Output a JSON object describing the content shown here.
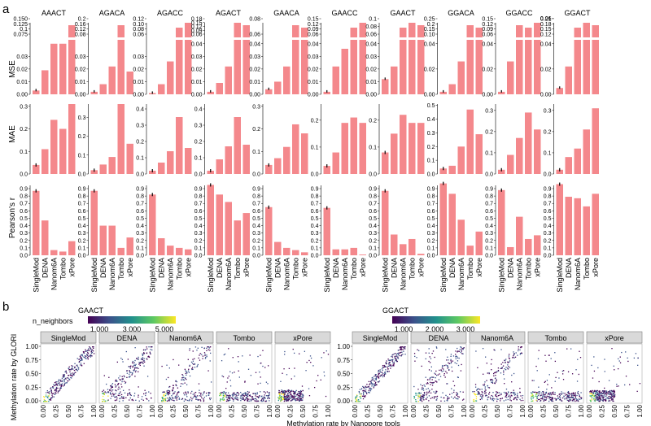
{
  "panels": {
    "a": "a",
    "b": "b"
  },
  "colors": {
    "bar": "#f4888c",
    "strip": "#d9d9d9",
    "strip_border": "#7f7f7f",
    "error": "#000000"
  },
  "chart_data": [
    {
      "type": "bar",
      "panel": "a",
      "categories": [
        "SingleMod",
        "DENA",
        "Nanom6A",
        "Tombo",
        "xPore"
      ],
      "row_labels": {
        "MSE": "MSE",
        "MAE": "MAE",
        "r": "Pearson's r"
      },
      "motifs": [
        {
          "name": "AAACT",
          "mse": [
            0.003,
            0.019,
            0.04,
            0.04,
            0.045
          ],
          "mse_ticks": [
            "0.00",
            "0.01",
            "0.02",
            "0.03"
          ],
          "mse_top": [
            "0.075",
            "0.1",
            "0.125",
            "0.150"
          ],
          "mae": [
            0.04,
            0.11,
            0.24,
            0.2,
            0.31
          ],
          "mae_ticks": [
            "0.0",
            "0.1",
            "0.2",
            "0.3"
          ],
          "mae_max": 0.31,
          "r": [
            0.87,
            0.47,
            0.07,
            0.05,
            0.19
          ]
        },
        {
          "name": "AGACA",
          "mse": [
            0.002,
            0.008,
            0.022,
            0.045,
            0.018
          ],
          "mse_ticks": [
            "0.00",
            "0.01",
            "0.02",
            "0.03"
          ],
          "mse_top": [
            "0.08",
            "0.12",
            "0.16",
            "0.2"
          ],
          "mae": [
            0.02,
            0.05,
            0.09,
            0.37,
            0.16
          ],
          "mae_ticks": [
            "0.0",
            "0.1",
            "0.2",
            "0.3"
          ],
          "mae_max": 0.37,
          "r": [
            0.87,
            0.4,
            0.4,
            0.1,
            0.24
          ]
        },
        {
          "name": "AGACC",
          "mse": [
            0.001,
            0.008,
            0.026,
            0.045,
            0.045
          ],
          "mse_ticks": [
            "0.00",
            "0.01",
            "0.02",
            "0.03"
          ],
          "mse_top": [
            "0.06",
            "0.08",
            "0.10",
            "0.12"
          ],
          "mae": [
            0.02,
            0.07,
            0.14,
            0.35,
            0.16
          ],
          "mae_ticks": [
            "0.0",
            "0.1",
            "0.2",
            "0.3",
            "0.4"
          ],
          "mae_max": 0.43,
          "r": [
            0.82,
            0.23,
            0.13,
            0.1,
            0.08
          ]
        },
        {
          "name": "AGACT",
          "mse": [
            0.002,
            0.009,
            0.022,
            0.045,
            0.045
          ],
          "mse_ticks": [
            "0.00",
            "0.01",
            "0.02",
            "0.03",
            "0.04"
          ],
          "mse_top": [
            "0.06",
            "0.09",
            "0.12",
            "0.15",
            "0.18"
          ],
          "mae": [
            0.02,
            0.09,
            0.17,
            0.35,
            0.18
          ],
          "mae_ticks": [
            "0.0",
            "0.1",
            "0.2",
            "0.3",
            "0.4"
          ],
          "mae_max": 0.43,
          "r": [
            0.95,
            0.82,
            0.72,
            0.47,
            0.57
          ]
        },
        {
          "name": "GAACA",
          "mse": [
            0.004,
            0.01,
            0.022,
            0.045,
            0.045
          ],
          "mse_ticks": [
            "0.00",
            "0.01",
            "0.02",
            "0.03",
            "0.04"
          ],
          "mse_top": [
            "0.06",
            "0.08"
          ],
          "mae": [
            0.04,
            0.07,
            0.12,
            0.22,
            0.18
          ],
          "mae_ticks": [
            "0.0",
            "0.1",
            "0.2",
            "0.3"
          ],
          "mae_max": 0.31,
          "r": [
            0.65,
            0.18,
            0.1,
            0.07,
            0.04
          ]
        },
        {
          "name": "GAACC",
          "mse": [
            0.002,
            0.022,
            0.036,
            0.045,
            0.045
          ],
          "mse_ticks": [
            "0.00",
            "0.01",
            "0.02",
            "0.03",
            "0.04"
          ],
          "mse_top": [
            "0.06",
            "0.09",
            "0.12",
            "0.15"
          ],
          "mae": [
            0.03,
            0.08,
            0.19,
            0.21,
            0.19
          ],
          "mae_ticks": [
            "0.0",
            "0.1",
            "0.2"
          ],
          "mae_max": 0.26,
          "r": [
            0.64,
            0.08,
            0.08,
            0.1,
            0.01
          ]
        },
        {
          "name": "GAACT",
          "mse": [
            0.012,
            0.022,
            0.045,
            0.045,
            0.045
          ],
          "mse_ticks": [
            "0.00",
            "0.01",
            "0.02",
            "0.03",
            "0.04"
          ],
          "mse_top": [
            "0.06",
            "0.08",
            "0.1"
          ],
          "mae": [
            0.08,
            0.15,
            0.22,
            0.19,
            0.19
          ],
          "mae_ticks": [
            "0.0",
            "0.1",
            "0.2"
          ],
          "mae_max": 0.26,
          "r": [
            0.87,
            0.28,
            0.15,
            0.22,
            0.02
          ]
        },
        {
          "name": "GGACA",
          "mse": [
            0.002,
            0.008,
            0.026,
            0.045,
            0.045
          ],
          "mse_ticks": [
            "0.00",
            "0.02",
            "0.04"
          ],
          "mse_top": [
            "0.10",
            "0.15",
            "0.2",
            "0.25"
          ],
          "mae": [
            0.04,
            0.06,
            0.2,
            0.47,
            0.29
          ],
          "mae_ticks": [
            "0.0",
            "0.1",
            "0.2",
            "0.3",
            "0.4",
            "0.5"
          ],
          "mae_max": 0.51,
          "r": [
            0.97,
            0.83,
            0.48,
            0.13,
            0.32
          ]
        },
        {
          "name": "GGACC",
          "mse": [
            0.002,
            0.026,
            0.045,
            0.045,
            0.045
          ],
          "mse_ticks": [
            "0.00",
            "0.02",
            "0.04"
          ],
          "mse_top": [
            "0.06",
            "0.09",
            "0.12",
            "0.15"
          ],
          "mae": [
            0.02,
            0.09,
            0.17,
            0.29,
            0.21
          ],
          "mae_ticks": [
            "0.0",
            "0.1",
            "0.2",
            "0.3"
          ],
          "mae_max": 0.33,
          "r": [
            0.88,
            0.11,
            0.52,
            0.22,
            0.27
          ]
        },
        {
          "name": "GGACT",
          "mse": [
            0.005,
            0.022,
            0.045,
            0.045,
            0.045
          ],
          "mse_ticks": [
            "0.00",
            "0.02",
            "0.04",
            "0.06"
          ],
          "mse_top": [
            "0.12",
            "0.15",
            "0.18",
            "0.21"
          ],
          "mae": [
            0.02,
            0.08,
            0.12,
            0.21,
            0.31
          ],
          "mae_ticks": [
            "0.0",
            "0.1",
            "0.2",
            "0.3"
          ],
          "mae_max": 0.33,
          "r": [
            0.96,
            0.79,
            0.77,
            0.66,
            0.83
          ]
        }
      ],
      "r_ticks": [
        "0.0",
        "0.1",
        "0.2",
        "0.3",
        "0.4",
        "0.5",
        "0.6",
        "0.7",
        "0.8",
        "0.9"
      ]
    },
    {
      "type": "scatter",
      "panel": "b",
      "ylabel": "Methylation rate by GLORI",
      "xlabel": "Methylation rate by Nanopore tools",
      "tools": [
        "SingleMod",
        "DENA",
        "Nanom6A",
        "Tombo",
        "xPore"
      ],
      "axis_ticks": [
        "0.00",
        "0.25",
        "0.50",
        "0.75",
        "1.00"
      ],
      "xlim": [
        0,
        1
      ],
      "ylim": [
        0,
        1
      ],
      "legend_title": "n_neighbors",
      "groups": [
        {
          "motif": "GAACT",
          "colorbar_ticks": [
            "1,000",
            "3,000",
            "5,000"
          ]
        },
        {
          "motif": "GGACT",
          "colorbar_ticks": [
            "1,000",
            "2,000",
            "3,000"
          ]
        }
      ]
    }
  ]
}
